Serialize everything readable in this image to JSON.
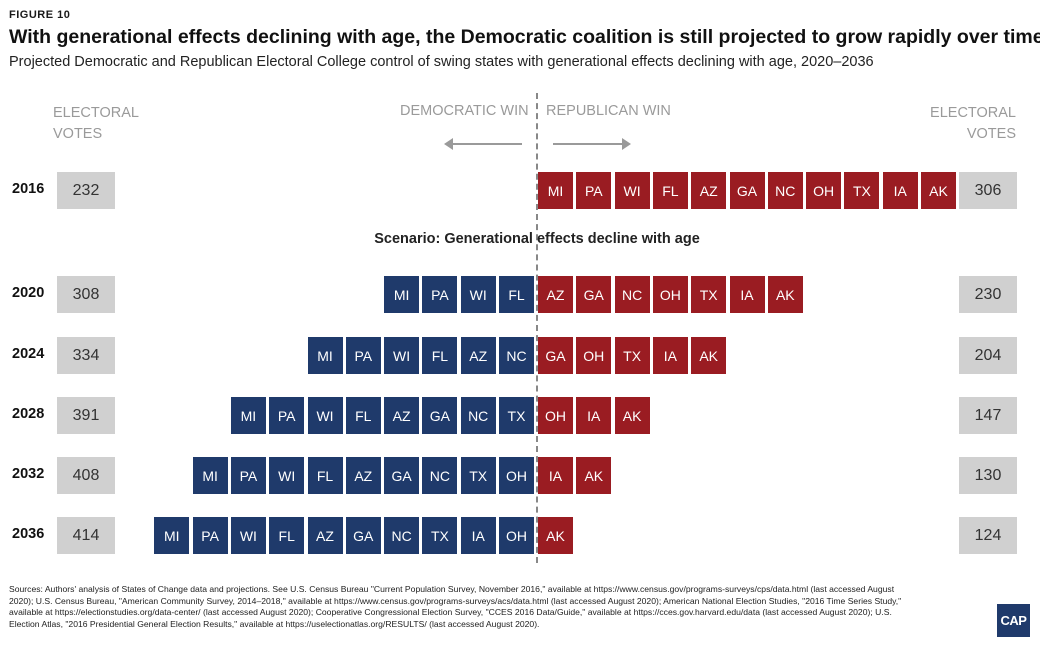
{
  "figure_label": "FIGURE 10",
  "title": "With generational effects declining with age, the Democratic coalition is still projected to grow rapidly over time",
  "subtitle": "Projected Democratic and Republican Electoral College control of swing states with generational effects declining with age, 2020–2036",
  "headers": {
    "left_line1": "ELECTORAL",
    "left_line2": "VOTES",
    "right_line1": "ELECTORAL",
    "right_line2": "VOTES",
    "dem_win": "DEMOCRATIC WIN",
    "rep_win": "REPUBLICAN WIN"
  },
  "scenario_label": "Scenario: Generational effects decline with age",
  "colors": {
    "democratic": "#1f3a6b",
    "republican": "#9a1c22",
    "ev_box": "#d0d0d0"
  },
  "chart_data": {
    "type": "table",
    "rows": [
      {
        "year": "2016",
        "dem_ev": "232",
        "rep_ev": "306",
        "dem_states": [],
        "rep_states": [
          "MI",
          "PA",
          "WI",
          "FL",
          "AZ",
          "GA",
          "NC",
          "OH",
          "TX",
          "IA",
          "AK"
        ]
      },
      {
        "year": "2020",
        "dem_ev": "308",
        "rep_ev": "230",
        "dem_states": [
          "MI",
          "PA",
          "WI",
          "FL"
        ],
        "rep_states": [
          "AZ",
          "GA",
          "NC",
          "OH",
          "TX",
          "IA",
          "AK"
        ]
      },
      {
        "year": "2024",
        "dem_ev": "334",
        "rep_ev": "204",
        "dem_states": [
          "MI",
          "PA",
          "WI",
          "FL",
          "AZ",
          "NC"
        ],
        "rep_states": [
          "GA",
          "OH",
          "TX",
          "IA",
          "AK"
        ]
      },
      {
        "year": "2028",
        "dem_ev": "391",
        "rep_ev": "147",
        "dem_states": [
          "MI",
          "PA",
          "WI",
          "FL",
          "AZ",
          "GA",
          "NC",
          "TX"
        ],
        "rep_states": [
          "OH",
          "IA",
          "AK"
        ]
      },
      {
        "year": "2032",
        "dem_ev": "408",
        "rep_ev": "130",
        "dem_states": [
          "MI",
          "PA",
          "WI",
          "FL",
          "AZ",
          "GA",
          "NC",
          "TX",
          "OH"
        ],
        "rep_states": [
          "IA",
          "AK"
        ]
      },
      {
        "year": "2036",
        "dem_ev": "414",
        "rep_ev": "124",
        "dem_states": [
          "MI",
          "PA",
          "WI",
          "FL",
          "AZ",
          "GA",
          "NC",
          "TX",
          "IA",
          "OH"
        ],
        "rep_states": [
          "AK"
        ]
      }
    ]
  },
  "sources": "Sources: Authors' analysis of States of Change data and projections. See U.S. Census Bureau \"Current Population Survey, November 2016,\" available at https://www.census.gov/programs-surveys/cps/data.html (last accessed August 2020); U.S. Census Bureau, \"American Community Survey, 2014–2018,\" available at https://www.census.gov/programs-surveys/acs/data.html (last accessed August 2020); American National Election Studies, \"2016 Time Series Study,\" available at https://electionstudies.org/data-center/ (last accessed August 2020); Cooperative Congressional Election Survey, \"CCES 2016 Data/Guide,\" available at https://cces.gov.harvard.edu/data (last accessed August 2020); U.S. Election Atlas, \"2016 Presidential General Election Results,\" available at https://uselectionatlas.org/RESULTS/ (last accessed August 2020).",
  "logo_text": "CAP"
}
